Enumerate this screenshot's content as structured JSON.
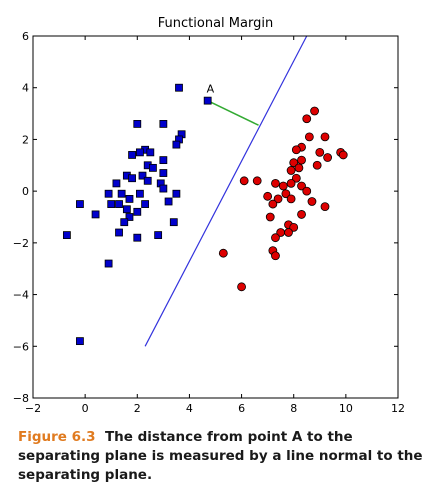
{
  "chart_data": {
    "type": "scatter",
    "title": "Functional Margin",
    "xlabel": "",
    "ylabel": "",
    "xlim": [
      -2,
      12
    ],
    "ylim": [
      -8,
      6
    ],
    "xticks": [
      -2,
      0,
      2,
      4,
      6,
      8,
      10,
      12
    ],
    "yticks": [
      -8,
      -6,
      -4,
      -2,
      0,
      2,
      4,
      6
    ],
    "grid": false,
    "series": [
      {
        "marker": "square",
        "color": "#0000cc",
        "points": [
          [
            3.6,
            4.0
          ],
          [
            4.7,
            3.5
          ],
          [
            2.0,
            2.6
          ],
          [
            3.0,
            2.6
          ],
          [
            3.7,
            2.2
          ],
          [
            3.6,
            2.0
          ],
          [
            3.5,
            1.8
          ],
          [
            2.3,
            1.6
          ],
          [
            2.1,
            1.5
          ],
          [
            2.5,
            1.5
          ],
          [
            1.8,
            1.4
          ],
          [
            3.0,
            1.2
          ],
          [
            2.4,
            1.0
          ],
          [
            2.6,
            0.9
          ],
          [
            3.0,
            0.7
          ],
          [
            2.2,
            0.6
          ],
          [
            1.6,
            0.6
          ],
          [
            1.8,
            0.5
          ],
          [
            2.4,
            0.4
          ],
          [
            1.2,
            0.3
          ],
          [
            2.9,
            0.3
          ],
          [
            3.0,
            0.1
          ],
          [
            0.9,
            -0.1
          ],
          [
            1.4,
            -0.1
          ],
          [
            2.1,
            -0.1
          ],
          [
            3.5,
            -0.1
          ],
          [
            1.7,
            -0.3
          ],
          [
            -0.2,
            -0.5
          ],
          [
            1.0,
            -0.5
          ],
          [
            1.3,
            -0.5
          ],
          [
            2.3,
            -0.5
          ],
          [
            3.2,
            -0.4
          ],
          [
            1.6,
            -0.7
          ],
          [
            2.0,
            -0.8
          ],
          [
            0.4,
            -0.9
          ],
          [
            1.7,
            -1.0
          ],
          [
            1.5,
            -1.2
          ],
          [
            3.4,
            -1.2
          ],
          [
            1.3,
            -1.6
          ],
          [
            2.8,
            -1.7
          ],
          [
            -0.7,
            -1.7
          ],
          [
            2.0,
            -1.8
          ],
          [
            0.9,
            -2.8
          ],
          [
            -0.2,
            -5.8
          ]
        ]
      },
      {
        "marker": "circle",
        "color": "#dd0000",
        "points": [
          [
            8.8,
            3.1
          ],
          [
            8.5,
            2.8
          ],
          [
            8.6,
            2.1
          ],
          [
            9.2,
            2.1
          ],
          [
            8.3,
            1.7
          ],
          [
            8.1,
            1.6
          ],
          [
            9.0,
            1.5
          ],
          [
            9.8,
            1.5
          ],
          [
            9.9,
            1.4
          ],
          [
            8.3,
            1.2
          ],
          [
            8.0,
            1.1
          ],
          [
            9.3,
            1.3
          ],
          [
            8.9,
            1.0
          ],
          [
            8.2,
            0.9
          ],
          [
            7.9,
            0.8
          ],
          [
            8.1,
            0.5
          ],
          [
            6.1,
            0.4
          ],
          [
            6.6,
            0.4
          ],
          [
            7.3,
            0.3
          ],
          [
            7.6,
            0.2
          ],
          [
            7.9,
            0.3
          ],
          [
            8.3,
            0.2
          ],
          [
            8.5,
            0.0
          ],
          [
            7.7,
            -0.1
          ],
          [
            7.0,
            -0.2
          ],
          [
            7.4,
            -0.3
          ],
          [
            7.9,
            -0.3
          ],
          [
            8.7,
            -0.4
          ],
          [
            7.2,
            -0.5
          ],
          [
            9.2,
            -0.6
          ],
          [
            7.1,
            -1.0
          ],
          [
            8.3,
            -0.9
          ],
          [
            7.8,
            -1.3
          ],
          [
            8.0,
            -1.4
          ],
          [
            7.5,
            -1.6
          ],
          [
            7.8,
            -1.6
          ],
          [
            7.3,
            -1.8
          ],
          [
            7.2,
            -2.3
          ],
          [
            5.3,
            -2.4
          ],
          [
            7.3,
            -2.5
          ],
          [
            6.0,
            -3.7
          ]
        ]
      }
    ],
    "separating_line": {
      "color": "#3333dd",
      "points": [
        [
          2.3,
          -6.0
        ],
        [
          8.5,
          6.0
        ]
      ]
    },
    "margin_segment": {
      "color": "#33aa33",
      "points": [
        [
          4.7,
          3.5
        ],
        [
          6.65,
          2.55
        ]
      ]
    },
    "annotations": [
      {
        "text": "A",
        "x": 4.7,
        "y": 3.5
      }
    ]
  },
  "caption": {
    "figure_label": "Figure 6.3",
    "text": "The distance from point A to the separating plane is measured by a line normal to the separating plane."
  }
}
